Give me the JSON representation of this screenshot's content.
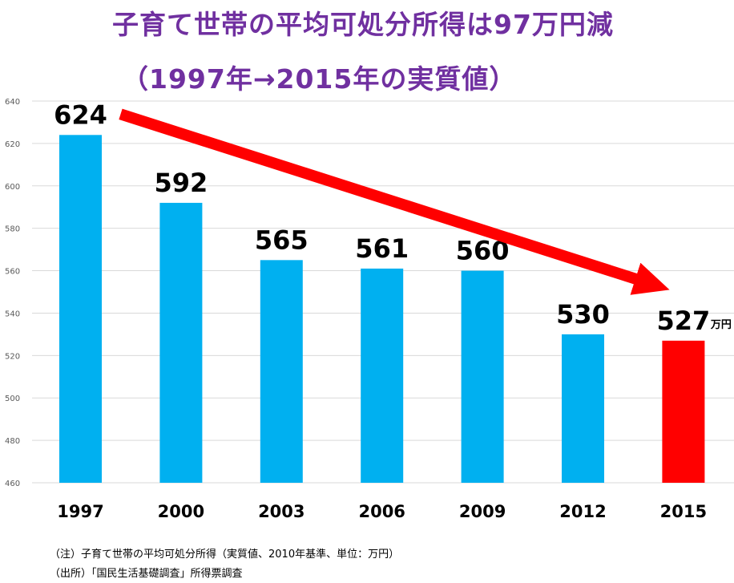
{
  "chart_data": {
    "type": "bar",
    "title": "子育て世帯の平均可処分所得は97万円減",
    "subtitle": "（1997年→2015年の実質値）",
    "categories": [
      "1997",
      "2000",
      "2003",
      "2006",
      "2009",
      "2012",
      "2015"
    ],
    "values": [
      624,
      592,
      565,
      561,
      560,
      530,
      527
    ],
    "data_labels": [
      "624",
      "592",
      "565",
      "561",
      "560",
      "530",
      "527"
    ],
    "unit_label": "万円",
    "ylim": [
      460,
      640
    ],
    "y_ticks": [
      460,
      480,
      500,
      520,
      540,
      560,
      580,
      600,
      620,
      640
    ],
    "y_tick_labels": [
      "460",
      "480",
      "500",
      "520",
      "540",
      "560",
      "580",
      "600",
      "620",
      "640"
    ],
    "grid": true,
    "bar_color": "#00B0F0",
    "highlight_bar_color": "#FF0000",
    "highlight_category": "2015",
    "trend_arrow_color": "#FF0000",
    "xlabel": "",
    "ylabel": ""
  },
  "notes": [
    "（注）子育て世帯の平均可処分所得（実質値、2010年基準、単位：万円）",
    "（出所）「国民生活基礎調査」所得票調査"
  ]
}
